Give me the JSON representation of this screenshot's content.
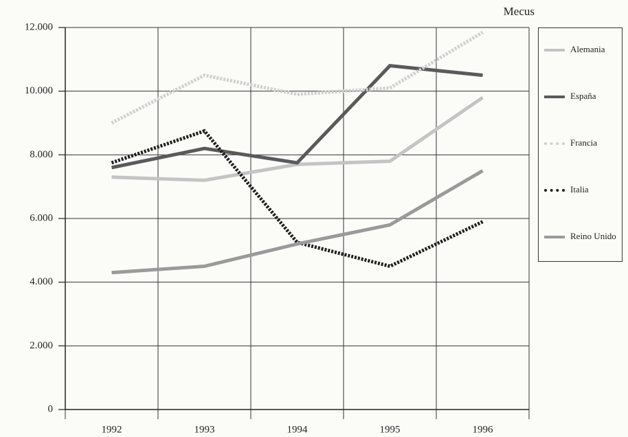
{
  "chart_data": {
    "type": "line",
    "unit_label": "Mecus",
    "categories": [
      "1992",
      "1993",
      "1994",
      "1995",
      "1996"
    ],
    "series": [
      {
        "name": "Alemania",
        "color": "#c4c4c4",
        "style": "solid",
        "values": [
          7300,
          7200,
          7700,
          7800,
          9800
        ]
      },
      {
        "name": "España",
        "color": "#5a5a5a",
        "style": "solid",
        "values": [
          7600,
          8200,
          7750,
          10800,
          10500
        ]
      },
      {
        "name": "Francia",
        "color": "#cfcfcf",
        "style": "dotted",
        "values": [
          9000,
          10500,
          9900,
          10100,
          11850
        ]
      },
      {
        "name": "Italia",
        "color": "#1e1e1e",
        "style": "dotted",
        "values": [
          7750,
          8750,
          5250,
          4500,
          5900
        ]
      },
      {
        "name": "Reino Unido",
        "color": "#9a9a9a",
        "style": "solid",
        "values": [
          4300,
          4500,
          5200,
          5800,
          7500
        ]
      }
    ],
    "ylim": [
      0,
      12000
    ],
    "yticks": [
      {
        "value": 0,
        "label": "0"
      },
      {
        "value": 2000,
        "label": "2.000"
      },
      {
        "value": 4000,
        "label": "4.000"
      },
      {
        "value": 6000,
        "label": "6.000"
      },
      {
        "value": 8000,
        "label": "8.000"
      },
      {
        "value": 10000,
        "label": "10.000"
      },
      {
        "value": 12000,
        "label": "12.000"
      }
    ],
    "grid": true
  }
}
